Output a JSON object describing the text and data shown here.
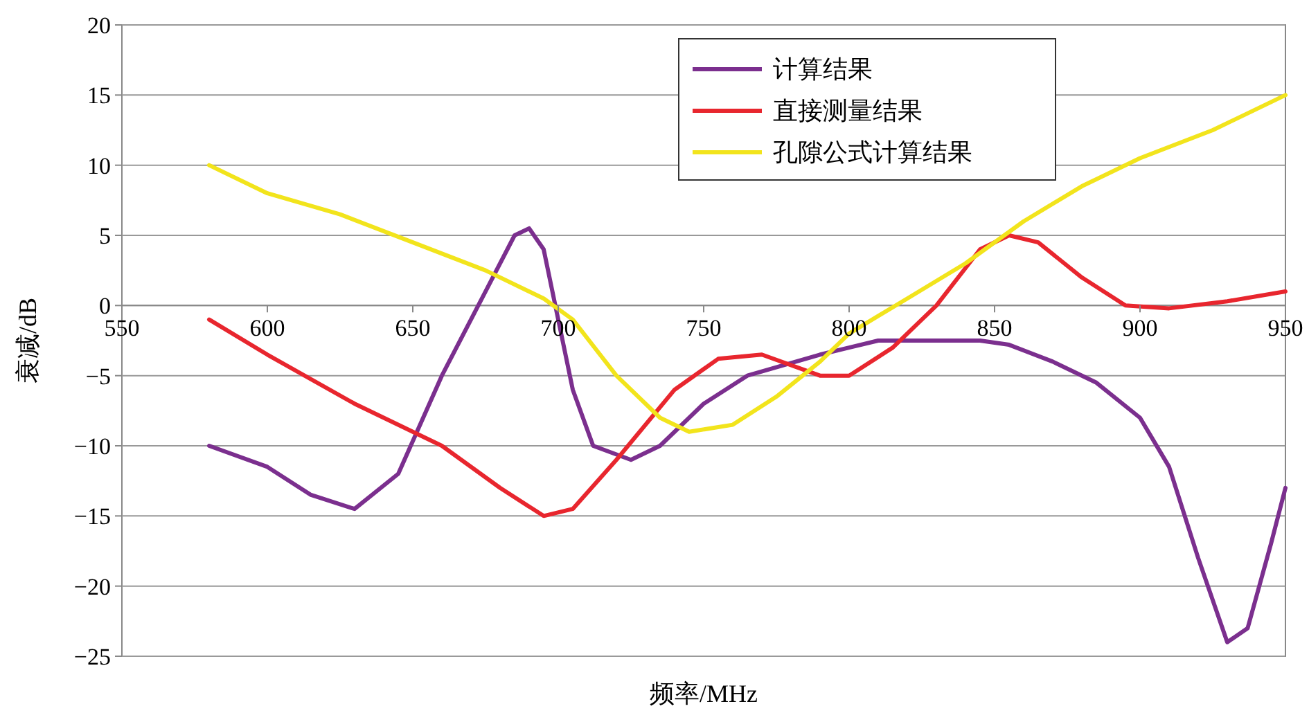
{
  "chart_data": {
    "type": "line",
    "xlabel": "频率/MHz",
    "ylabel": "衰减/dB",
    "xlim": [
      550,
      950
    ],
    "ylim": [
      -25,
      20
    ],
    "xticks": [
      550,
      600,
      650,
      700,
      750,
      800,
      850,
      900,
      950
    ],
    "yticks": [
      {
        "value": -25,
        "label": "−25"
      },
      {
        "value": -20,
        "label": "−20"
      },
      {
        "value": -15,
        "label": "−15"
      },
      {
        "value": -10,
        "label": "−10"
      },
      {
        "value": -5,
        "label": "−5"
      },
      0,
      5,
      10,
      15,
      20
    ],
    "grid": "y",
    "legend": "top",
    "series": [
      {
        "name": "计算结果",
        "color": "#7b2f8e",
        "x": [
          580,
          600,
          615,
          630,
          645,
          660,
          675,
          685,
          690,
          695,
          700,
          705,
          712,
          725,
          735,
          750,
          765,
          790,
          800,
          810,
          830,
          845,
          855,
          870,
          885,
          900,
          910,
          920,
          930,
          937,
          945,
          950
        ],
        "values": [
          -10,
          -11.5,
          -13.5,
          -14.5,
          -12,
          -5,
          1,
          5,
          5.5,
          4,
          -1,
          -6,
          -10,
          -11,
          -10,
          -7,
          -5,
          -3.5,
          -3,
          -2.5,
          -2.5,
          -2.5,
          -2.8,
          -4,
          -5.5,
          -8,
          -11.5,
          -18,
          -24,
          -23,
          -17,
          -13
        ]
      },
      {
        "name": "直接测量结果",
        "color": "#e8262e",
        "x": [
          580,
          600,
          630,
          660,
          680,
          695,
          705,
          720,
          740,
          755,
          770,
          790,
          800,
          815,
          830,
          845,
          855,
          865,
          880,
          895,
          910,
          930,
          950
        ],
        "values": [
          -1,
          -3.5,
          -7,
          -10,
          -13,
          -15,
          -14.5,
          -11,
          -6,
          -3.8,
          -3.5,
          -5,
          -5,
          -3,
          0,
          4,
          5,
          4.5,
          2,
          0,
          -0.2,
          0.3,
          1
        ]
      },
      {
        "name": "孔隙公式计算结果",
        "color": "#f2e41c",
        "x": [
          580,
          600,
          625,
          650,
          675,
          695,
          705,
          720,
          735,
          745,
          760,
          775,
          790,
          800,
          820,
          840,
          860,
          880,
          900,
          925,
          950
        ],
        "values": [
          10,
          8,
          6.5,
          4.5,
          2.5,
          0.5,
          -1,
          -5,
          -8,
          -9,
          -8.5,
          -6.5,
          -4,
          -2,
          0.5,
          3,
          6,
          8.5,
          10.5,
          12.5,
          15
        ]
      }
    ]
  }
}
